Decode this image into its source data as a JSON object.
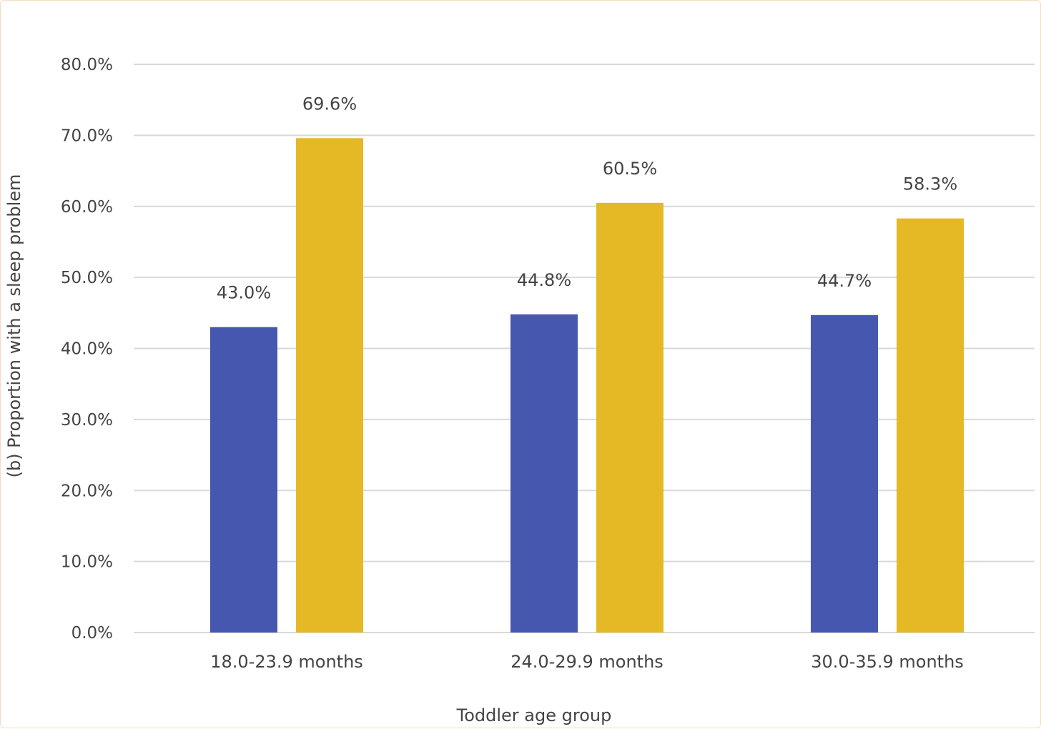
{
  "chart_data": {
    "type": "bar",
    "title": "",
    "xlabel": "Toddler age group",
    "ylabel": "(b) Proportion with a sleep problem",
    "categories": [
      "18.0-23.9 months",
      "24.0-29.9 months",
      "30.0-35.9 months"
    ],
    "series": [
      {
        "color": "#4657b0",
        "values": [
          43.0,
          44.8,
          44.7
        ],
        "labels": [
          "43.0%",
          "44.8%",
          "44.7%"
        ]
      },
      {
        "color": "#e5b826",
        "values": [
          69.6,
          60.5,
          58.3
        ],
        "labels": [
          "69.6%",
          "60.5%",
          "58.3%"
        ]
      }
    ],
    "ylim": [
      0,
      80
    ],
    "yticks": [
      0,
      10,
      20,
      30,
      40,
      50,
      60,
      70,
      80
    ],
    "ytick_labels": [
      "0.0%",
      "10.0%",
      "20.0%",
      "30.0%",
      "40.0%",
      "50.0%",
      "60.0%",
      "70.0%",
      "80.0%"
    ],
    "grid": true,
    "legend": "none",
    "colors": {
      "gridline": "#d9d9d9",
      "text": "#444444",
      "border": "#f3dcc0"
    }
  }
}
